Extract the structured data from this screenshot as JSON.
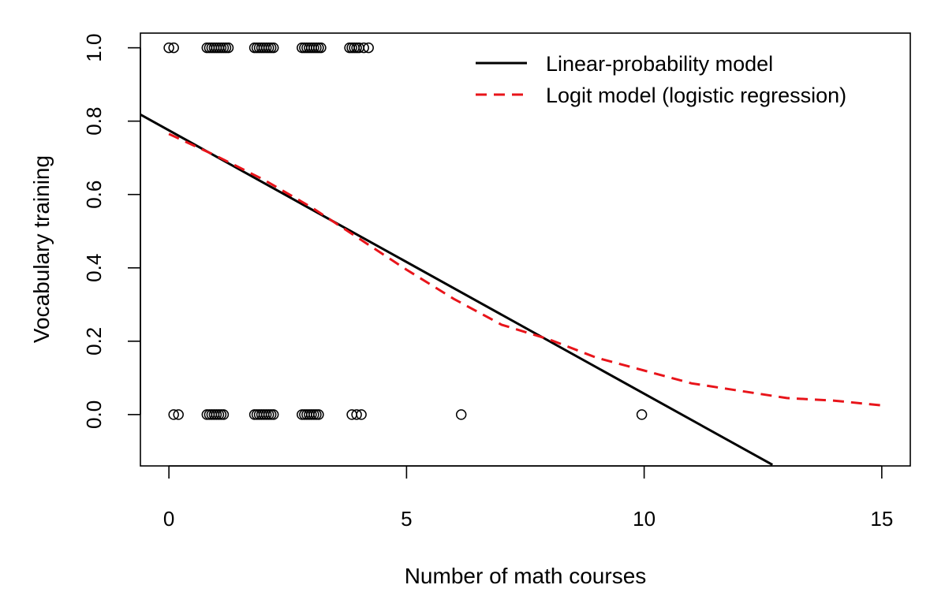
{
  "chart_data": {
    "type": "scatter",
    "title": "",
    "xlabel": "Number of math courses",
    "ylabel": "Vocabulary training",
    "xlim": [
      -0.6,
      15.6
    ],
    "ylim": [
      -0.14,
      1.04
    ],
    "x_ticks": [
      0,
      5,
      10,
      15
    ],
    "x_tick_labels": [
      "0",
      "5",
      "10",
      "15"
    ],
    "y_ticks": [
      0.0,
      0.2,
      0.4,
      0.6,
      0.8,
      1.0
    ],
    "y_tick_labels": [
      "0.0",
      "0.2",
      "0.4",
      "0.6",
      "0.8",
      "1.0"
    ],
    "grid": false,
    "legend_position": "top-right",
    "legend": [
      {
        "label": "Linear-probability model",
        "color": "#000000",
        "style": "solid"
      },
      {
        "label": "Logit model (logistic regression)",
        "color": "#e8141a",
        "style": "dashed"
      }
    ],
    "points": {
      "marker": "open-circle",
      "color": "#000000",
      "y1_x": [
        0.0,
        0.1,
        0.8,
        0.85,
        0.9,
        0.95,
        1.0,
        1.05,
        1.1,
        1.15,
        1.2,
        1.25,
        1.8,
        1.85,
        1.9,
        1.95,
        2.0,
        2.05,
        2.1,
        2.15,
        2.2,
        2.8,
        2.85,
        2.9,
        2.95,
        3.0,
        3.05,
        3.1,
        3.15,
        3.2,
        3.8,
        3.85,
        3.9,
        3.95,
        4.0,
        4.1,
        4.2
      ],
      "y0_x": [
        0.1,
        0.2,
        0.8,
        0.85,
        0.9,
        0.95,
        1.0,
        1.05,
        1.1,
        1.15,
        1.8,
        1.85,
        1.9,
        1.95,
        2.0,
        2.05,
        2.1,
        2.15,
        2.2,
        2.8,
        2.85,
        2.9,
        2.95,
        3.0,
        3.05,
        3.1,
        3.15,
        3.85,
        3.95,
        4.05,
        6.15,
        9.95
      ]
    },
    "series": [
      {
        "name": "Linear-probability model",
        "color": "#000000",
        "style": "solid",
        "x": [
          -0.6,
          12.7
        ],
        "y": [
          0.818,
          -0.137
        ]
      },
      {
        "name": "Logit model (logistic regression)",
        "color": "#e8141a",
        "style": "dashed",
        "x": [
          0,
          1,
          2,
          3,
          4,
          5,
          6,
          7,
          8,
          9,
          10,
          11,
          12,
          13,
          14,
          15
        ],
        "y": [
          0.765,
          0.705,
          0.64,
          0.565,
          0.48,
          0.395,
          0.315,
          0.245,
          0.205,
          0.155,
          0.12,
          0.085,
          0.065,
          0.045,
          0.038,
          0.025
        ]
      }
    ]
  }
}
